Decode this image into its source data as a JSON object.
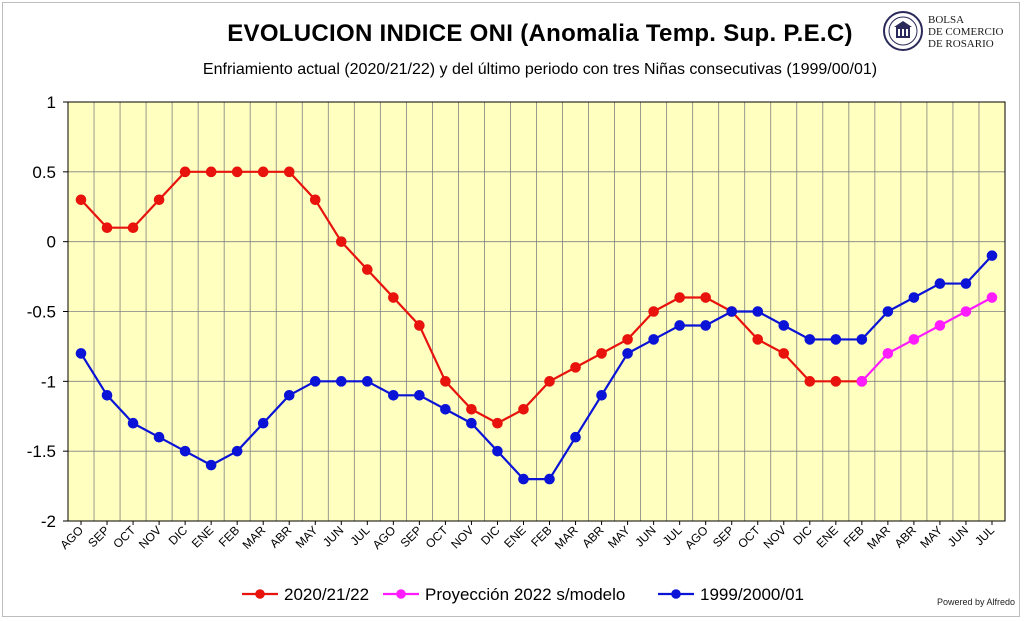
{
  "title": "EVOLUCION INDICE ONI (Anomalia Temp. Sup. P.E.C)",
  "subtitle": "Enfriamiento actual (2020/21/22) y del último periodo con tres Niñas consecutivas (1999/00/01)",
  "logo": {
    "line1": "BOLSA",
    "line2": "DE COMERCIO",
    "line3": "DE ROSARIO",
    "icon": "seal-icon"
  },
  "powered_by": "Powered by Alfredo",
  "colors": {
    "plot_bg": "#FFFFC0",
    "grid": "#808080",
    "series_2020": "#E8130C",
    "projection": "#FF1CFF",
    "series_1999": "#0A13D6"
  },
  "chart_data": {
    "type": "line",
    "title": "EVOLUCION INDICE ONI (Anomalia Temp. Sup. P.E.C)",
    "subtitle": "Enfriamiento actual (2020/21/22) y del último periodo con tres Niñas consecutivas (1999/00/01)",
    "categories": [
      "AGO",
      "SEP",
      "OCT",
      "NOV",
      "DIC",
      "ENE",
      "FEB",
      "MAR",
      "ABR",
      "MAY",
      "JUN",
      "JUL",
      "AGO",
      "SEP",
      "OCT",
      "NOV",
      "DIC",
      "ENE",
      "FEB",
      "MAR",
      "ABR",
      "MAY",
      "JUN",
      "JUL",
      "AGO",
      "SEP",
      "OCT",
      "NOV",
      "DIC",
      "ENE",
      "FEB",
      "MAR",
      "ABR",
      "MAY",
      "JUN",
      "JUL"
    ],
    "ylim": [
      -2,
      1
    ],
    "yticks": [
      1,
      0.5,
      0,
      -0.5,
      -1,
      -1.5,
      -2
    ],
    "ytick_labels": [
      "1",
      "0.5",
      "0",
      "-0.5",
      "-1",
      "-1.5",
      "-2"
    ],
    "grid": true,
    "legend_position": "bottom",
    "series": [
      {
        "name": "2020/21/22",
        "color_key": "series_2020",
        "values": [
          0.3,
          0.1,
          0.1,
          0.3,
          0.5,
          0.5,
          0.5,
          0.5,
          0.5,
          0.3,
          0.0,
          -0.2,
          -0.4,
          -0.6,
          -1.0,
          -1.2,
          -1.3,
          -1.2,
          -1.0,
          -0.9,
          -0.8,
          -0.7,
          -0.5,
          -0.4,
          -0.4,
          -0.5,
          -0.7,
          -0.8,
          -1.0,
          -1.0,
          -1.0,
          null,
          null,
          null,
          null,
          null
        ]
      },
      {
        "name": "Proyección 2022 s/modelo",
        "color_key": "projection",
        "values": [
          null,
          null,
          null,
          null,
          null,
          null,
          null,
          null,
          null,
          null,
          null,
          null,
          null,
          null,
          null,
          null,
          null,
          null,
          null,
          null,
          null,
          null,
          null,
          null,
          null,
          null,
          null,
          null,
          null,
          null,
          -1.0,
          -0.8,
          -0.7,
          -0.6,
          -0.5,
          -0.4
        ]
      },
      {
        "name": "1999/2000/01",
        "color_key": "series_1999",
        "values": [
          -0.8,
          -1.1,
          -1.3,
          -1.4,
          -1.5,
          -1.6,
          -1.5,
          -1.3,
          -1.1,
          -1.0,
          -1.0,
          -1.0,
          -1.1,
          -1.1,
          -1.2,
          -1.3,
          -1.5,
          -1.7,
          -1.7,
          -1.4,
          -1.1,
          -0.8,
          -0.7,
          -0.6,
          -0.6,
          -0.5,
          -0.5,
          -0.6,
          -0.7,
          -0.7,
          -0.7,
          -0.5,
          -0.4,
          -0.3,
          -0.3,
          -0.1
        ]
      }
    ]
  }
}
